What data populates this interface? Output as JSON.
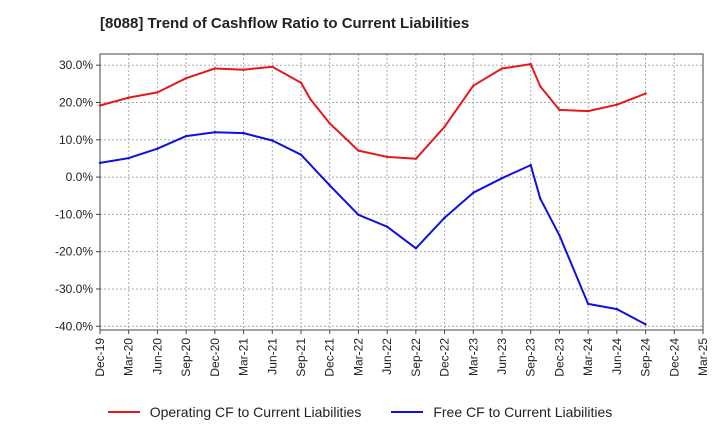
{
  "chart_data": {
    "type": "line",
    "title": "[8088]  Trend of Cashflow Ratio to Current Liabilities",
    "xlabel": "",
    "ylabel": "",
    "categories": [
      "Dec-19",
      "Mar-20",
      "Jun-20",
      "Sep-20",
      "Dec-20",
      "Mar-21",
      "Jun-21",
      "Sep-21",
      "Dec-21",
      "Mar-22",
      "Jun-22",
      "Sep-22",
      "Dec-22",
      "Mar-23",
      "Jun-23",
      "Sep-23",
      "Dec-23",
      "Mar-24",
      "Jun-24",
      "Sep-24",
      "Dec-24",
      "Mar-25"
    ],
    "x_tick_labels": [
      "Dec-19",
      "Mar-20",
      "Jun-20",
      "Sep-20",
      "Dec-20",
      "Mar-21",
      "Jun-21",
      "Sep-21",
      "Dec-21",
      "Mar-22",
      "Jun-22",
      "Sep-22",
      "Dec-22",
      "Mar-23",
      "Jun-23",
      "Sep-23",
      "Dec-23",
      "Mar-24",
      "Jun-24",
      "Sep-24",
      "Dec-24",
      "Mar-25"
    ],
    "y_tick_labels": [
      "30.0%",
      "20.0%",
      "10.0%",
      "0.0%",
      "-10.0%",
      "-20.0%",
      "-30.0%",
      "-40.0%"
    ],
    "y_ticks": [
      30,
      20,
      10,
      0,
      -10,
      -20,
      -30,
      -40
    ],
    "ylim": [
      -41,
      33
    ],
    "grid": true,
    "legend_position": "bottom",
    "series": [
      {
        "name": "Operating CF to Current Liabilities",
        "color": "#e31a1c",
        "x": [
          "Dec-19",
          "Mar-20",
          "Jun-20",
          "Sep-20",
          "Dec-20",
          "Mar-21",
          "Jun-21",
          "Sep-21",
          "Oct-21",
          "Dec-21",
          "Mar-22",
          "Jun-22",
          "Sep-22",
          "Dec-22",
          "Mar-23",
          "Jun-23",
          "Sep-23",
          "Oct-23",
          "Dec-23",
          "Mar-24",
          "Jun-24",
          "Sep-24"
        ],
        "values": [
          19.2,
          21.3,
          22.7,
          26.5,
          29.1,
          28.8,
          29.6,
          25.3,
          20.8,
          14.4,
          7.1,
          5.4,
          4.9,
          13.5,
          24.5,
          29.1,
          30.3,
          24.3,
          18.0,
          17.7,
          19.4,
          22.4
        ]
      },
      {
        "name": "Free CF to Current Liabilities",
        "color": "#1010e0",
        "x": [
          "Dec-19",
          "Mar-20",
          "Jun-20",
          "Sep-20",
          "Dec-20",
          "Mar-21",
          "Jun-21",
          "Sep-21",
          "Dec-21",
          "Mar-22",
          "Jun-22",
          "Sep-22",
          "Dec-22",
          "Mar-23",
          "Jun-23",
          "Sep-23",
          "Oct-23",
          "Dec-23",
          "Mar-24",
          "Jun-24",
          "Sep-24"
        ],
        "values": [
          3.8,
          5.1,
          7.6,
          11.0,
          12.0,
          11.8,
          9.8,
          6.0,
          -2.2,
          -10.1,
          -13.3,
          -19.1,
          -10.9,
          -4.2,
          -0.3,
          3.2,
          -5.8,
          -15.6,
          -34.0,
          -35.4,
          -39.5
        ]
      }
    ]
  }
}
